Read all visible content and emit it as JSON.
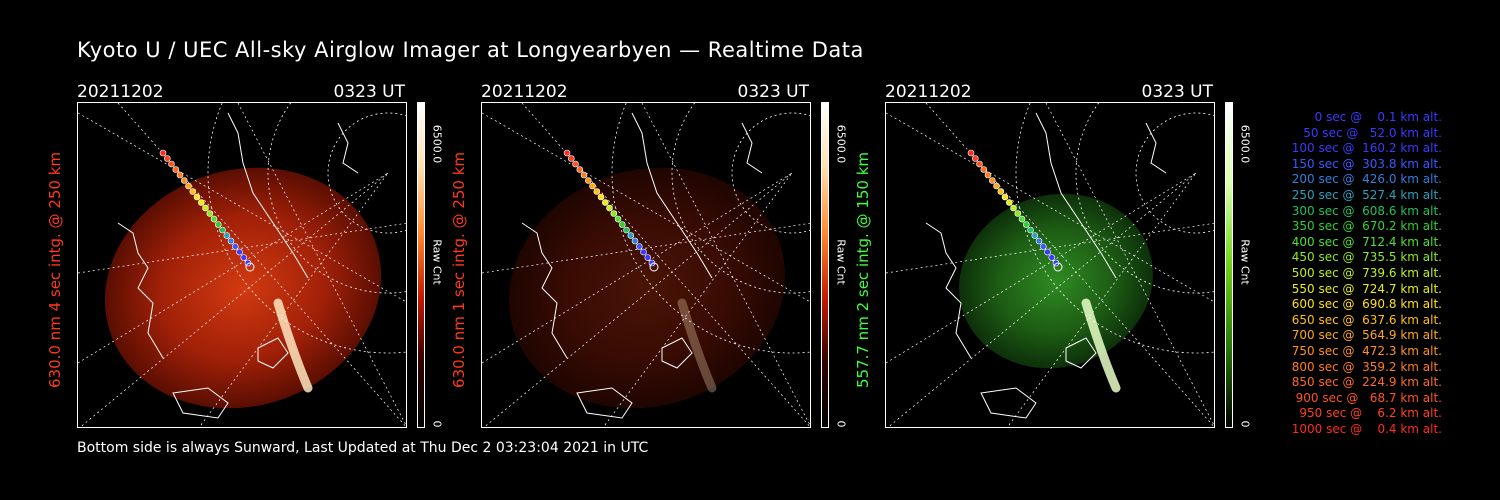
{
  "title": "Kyoto U / UEC All-sky Airglow Imager at Longyearbyen — Realtime Data",
  "footer": "Bottom side is always Sunward, Last Updated at Thu Dec  2 03:23:04 2021 in UTC",
  "panels": [
    {
      "date": "20211202",
      "time": "0323 UT",
      "label": "630.0 nm 4 sec intg. @ 250 km",
      "label_color": "#ff3a1a",
      "cbar_max": "6500.0",
      "cbar_unit": "Raw Cnt",
      "cbar_min": "0",
      "scheme": "red",
      "brightness": 1.0
    },
    {
      "date": "20211202",
      "time": "0323 UT",
      "label": "630.0 nm 1 sec intg. @ 250 km",
      "label_color": "#ff3a1a",
      "cbar_max": "6500.0",
      "cbar_unit": "Raw Cnt",
      "cbar_min": "0",
      "scheme": "red",
      "brightness": 0.35
    },
    {
      "date": "20211202",
      "time": "0323 UT",
      "label": "557.7 nm 2 sec intg. @ 150 km",
      "label_color": "#3dff3d",
      "cbar_max": "6500.0",
      "cbar_unit": "Raw Cnt",
      "cbar_min": "0",
      "scheme": "green",
      "brightness": 1.0
    }
  ],
  "legend": [
    {
      "text": "   0 sec @    0.1 km alt.",
      "color": "#3a3aff"
    },
    {
      "text": "  50 sec @   52.0 km alt.",
      "color": "#3a3aff"
    },
    {
      "text": " 100 sec @  160.2 km alt.",
      "color": "#3a3aff"
    },
    {
      "text": " 150 sec @  303.8 km alt.",
      "color": "#3a5aff"
    },
    {
      "text": " 200 sec @  426.0 km alt.",
      "color": "#2f7fe0"
    },
    {
      "text": " 250 sec @  527.4 km alt.",
      "color": "#2aa0c0"
    },
    {
      "text": " 300 sec @  608.6 km alt.",
      "color": "#22c060"
    },
    {
      "text": " 350 sec @  670.2 km alt.",
      "color": "#30d030"
    },
    {
      "text": " 400 sec @  712.4 km alt.",
      "color": "#50e030"
    },
    {
      "text": " 450 sec @  735.5 km alt.",
      "color": "#90e820"
    },
    {
      "text": " 500 sec @  739.6 km alt.",
      "color": "#c0ee20"
    },
    {
      "text": " 550 sec @  724.7 km alt.",
      "color": "#e8ee10"
    },
    {
      "text": " 600 sec @  690.8 km alt.",
      "color": "#ffe010"
    },
    {
      "text": " 650 sec @  637.6 km alt.",
      "color": "#ffc010"
    },
    {
      "text": " 700 sec @  564.9 km alt.",
      "color": "#ffa818"
    },
    {
      "text": " 750 sec @  472.3 km alt.",
      "color": "#ff9020"
    },
    {
      "text": " 800 sec @  359.2 km alt.",
      "color": "#ff7a20"
    },
    {
      "text": " 850 sec @  224.9 km alt.",
      "color": "#ff6a20"
    },
    {
      "text": " 900 sec @   68.7 km alt.",
      "color": "#ff5420"
    },
    {
      "text": " 950 sec @    6.2 km alt.",
      "color": "#ff4020"
    },
    {
      "text": "1000 sec @    0.4 km alt.",
      "color": "#ff2a20"
    }
  ]
}
